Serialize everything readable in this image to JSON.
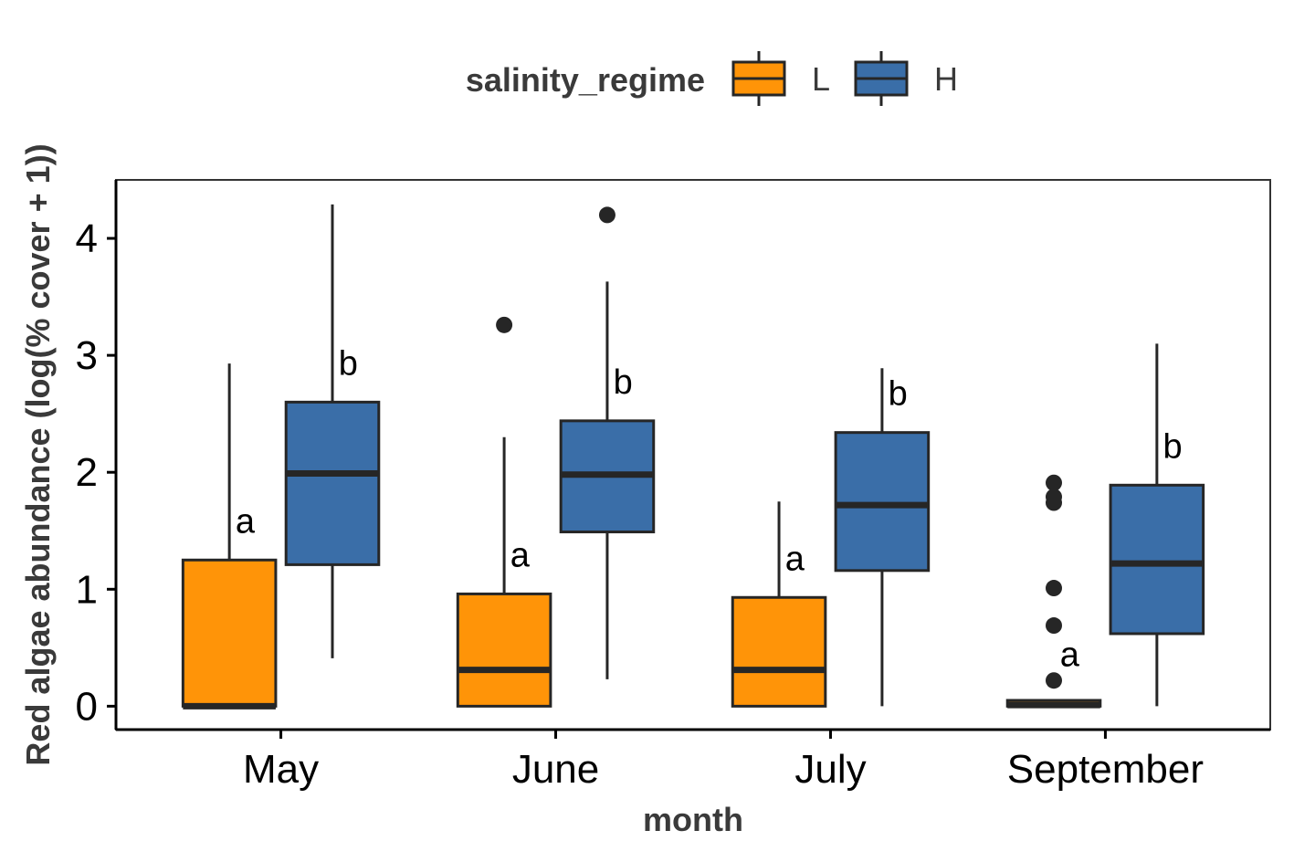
{
  "chart_data": {
    "type": "box",
    "title": "",
    "xlabel": "month",
    "ylabel": "Red algae abundance (log(% cover + 1))",
    "ylim": [
      -0.2,
      4.5
    ],
    "yticks": [
      0,
      1,
      2,
      3,
      4
    ],
    "categories": [
      "May",
      "June",
      "July",
      "September"
    ],
    "grid": false,
    "legend": {
      "title": "salinity_regime",
      "position": "top",
      "entries": [
        {
          "label": "L",
          "color": "#FF9408"
        },
        {
          "label": "H",
          "color": "#3A6EA8"
        }
      ]
    },
    "series": [
      {
        "name": "L",
        "color": "#FF9408",
        "boxes": [
          {
            "category": "May",
            "min": 0,
            "q1": 0,
            "median": 0,
            "q3": 1.25,
            "max": 2.93,
            "outliers": [],
            "label": "a"
          },
          {
            "category": "June",
            "min": 0,
            "q1": 0,
            "median": 0.31,
            "q3": 0.96,
            "max": 2.3,
            "outliers": [
              3.26
            ],
            "label": "a"
          },
          {
            "category": "July",
            "min": 0,
            "q1": 0,
            "median": 0.31,
            "q3": 0.93,
            "max": 1.75,
            "outliers": [],
            "label": "a"
          },
          {
            "category": "September",
            "min": 0,
            "q1": 0,
            "median": 0.01,
            "q3": 0.05,
            "max": 0.05,
            "outliers": [
              0.22,
              0.69,
              1.01,
              1.74,
              1.79,
              1.91
            ],
            "label": "a"
          }
        ]
      },
      {
        "name": "H",
        "color": "#3A6EA8",
        "boxes": [
          {
            "category": "May",
            "min": 0.41,
            "q1": 1.21,
            "median": 1.99,
            "q3": 2.6,
            "max": 4.29,
            "outliers": [],
            "label": "b"
          },
          {
            "category": "June",
            "min": 0.23,
            "q1": 1.49,
            "median": 1.98,
            "q3": 2.44,
            "max": 3.63,
            "outliers": [
              4.2
            ],
            "label": "b"
          },
          {
            "category": "July",
            "min": 0,
            "q1": 1.16,
            "median": 1.72,
            "q3": 2.34,
            "max": 2.89,
            "outliers": [],
            "label": "b"
          },
          {
            "category": "September",
            "min": 0,
            "q1": 0.62,
            "median": 1.22,
            "q3": 1.89,
            "max": 3.1,
            "outliers": [],
            "label": "b"
          }
        ]
      }
    ]
  }
}
